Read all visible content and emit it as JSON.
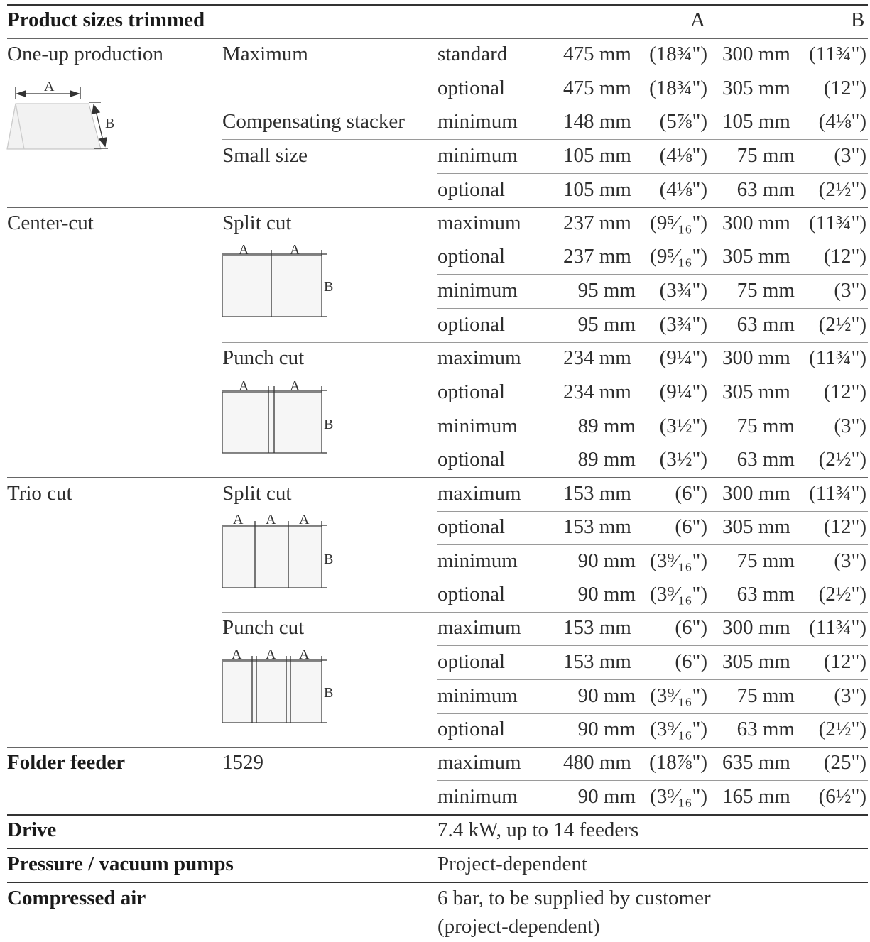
{
  "header": {
    "title": "Product sizes trimmed",
    "col_a": "A",
    "col_b": "B"
  },
  "diagram_labels": {
    "a": "A",
    "b": "B"
  },
  "sections": {
    "one_up": {
      "label": "One-up production",
      "groups": {
        "maximum": {
          "label": "Maximum",
          "rows": [
            {
              "kind": "standard",
              "a_mm": "475 mm",
              "a_in": "(18¾\")",
              "b_mm": "300 mm",
              "b_in": "(11¾\")"
            },
            {
              "kind": "optional",
              "a_mm": "475 mm",
              "a_in": "(18¾\")",
              "b_mm": "305 mm",
              "b_in": "(12\")"
            }
          ]
        },
        "stacker": {
          "label": "Compensating stacker",
          "rows": [
            {
              "kind": "minimum",
              "a_mm": "148 mm",
              "a_in": "(5⅞\")",
              "b_mm": "105 mm",
              "b_in": "(4⅛\")"
            }
          ]
        },
        "small": {
          "label": "Small size",
          "rows": [
            {
              "kind": "minimum",
              "a_mm": "105 mm",
              "a_in": "(4⅛\")",
              "b_mm": "75 mm",
              "b_in": "(3\")"
            },
            {
              "kind": "optional",
              "a_mm": "105 mm",
              "a_in": "(4⅛\")",
              "b_mm": "63 mm",
              "b_in": "(2½\")"
            }
          ]
        }
      }
    },
    "center_cut": {
      "label": "Center-cut",
      "groups": {
        "split": {
          "label": "Split cut",
          "rows": [
            {
              "kind": "maximum",
              "a_mm": "237 mm",
              "a_in": "(9⁵⁄₁₆\")",
              "b_mm": "300 mm",
              "b_in": "(11¾\")"
            },
            {
              "kind": "optional",
              "a_mm": "237 mm",
              "a_in": "(9⁵⁄₁₆\")",
              "b_mm": "305 mm",
              "b_in": "(12\")"
            },
            {
              "kind": "minimum",
              "a_mm": "95 mm",
              "a_in": "(3¾\")",
              "b_mm": "75 mm",
              "b_in": "(3\")"
            },
            {
              "kind": "optional",
              "a_mm": "95 mm",
              "a_in": "(3¾\")",
              "b_mm": "63 mm",
              "b_in": "(2½\")"
            }
          ]
        },
        "punch": {
          "label": "Punch cut",
          "rows": [
            {
              "kind": "maximum",
              "a_mm": "234 mm",
              "a_in": "(9¼\")",
              "b_mm": "300 mm",
              "b_in": "(11¾\")"
            },
            {
              "kind": "optional",
              "a_mm": "234 mm",
              "a_in": "(9¼\")",
              "b_mm": "305 mm",
              "b_in": "(12\")"
            },
            {
              "kind": "minimum",
              "a_mm": "89 mm",
              "a_in": "(3½\")",
              "b_mm": "75 mm",
              "b_in": "(3\")"
            },
            {
              "kind": "optional",
              "a_mm": "89 mm",
              "a_in": "(3½\")",
              "b_mm": "63 mm",
              "b_in": "(2½\")"
            }
          ]
        }
      }
    },
    "trio_cut": {
      "label": "Trio cut",
      "groups": {
        "split": {
          "label": "Split cut",
          "rows": [
            {
              "kind": "maximum",
              "a_mm": "153 mm",
              "a_in": "(6\")",
              "b_mm": "300 mm",
              "b_in": "(11¾\")"
            },
            {
              "kind": "optional",
              "a_mm": "153 mm",
              "a_in": "(6\")",
              "b_mm": "305 mm",
              "b_in": "(12\")"
            },
            {
              "kind": "minimum",
              "a_mm": "90 mm",
              "a_in": "(3⁹⁄₁₆\")",
              "b_mm": "75 mm",
              "b_in": "(3\")"
            },
            {
              "kind": "optional",
              "a_mm": "90 mm",
              "a_in": "(3⁹⁄₁₆\")",
              "b_mm": "63 mm",
              "b_in": "(2½\")"
            }
          ]
        },
        "punch": {
          "label": "Punch cut",
          "rows": [
            {
              "kind": "maximum",
              "a_mm": "153 mm",
              "a_in": "(6\")",
              "b_mm": "300 mm",
              "b_in": "(11¾\")"
            },
            {
              "kind": "optional",
              "a_mm": "153 mm",
              "a_in": "(6\")",
              "b_mm": "305 mm",
              "b_in": "(12\")"
            },
            {
              "kind": "minimum",
              "a_mm": "90 mm",
              "a_in": "(3⁹⁄₁₆\")",
              "b_mm": "75 mm",
              "b_in": "(3\")"
            },
            {
              "kind": "optional",
              "a_mm": "90 mm",
              "a_in": "(3⁹⁄₁₆\")",
              "b_mm": "63 mm",
              "b_in": "(2½\")"
            }
          ]
        }
      }
    },
    "folder_feeder": {
      "label": "Folder feeder",
      "model": "1529",
      "rows": [
        {
          "kind": "maximum",
          "a_mm": "480 mm",
          "a_in": "(18⅞\")",
          "b_mm": "635 mm",
          "b_in": "(25\")"
        },
        {
          "kind": "minimum",
          "a_mm": "90 mm",
          "a_in": "(3⁹⁄₁₆\")",
          "b_mm": "165 mm",
          "b_in": "(6½\")"
        }
      ]
    }
  },
  "specs": {
    "drive": {
      "label": "Drive",
      "value": "7.4 kW, up to 14 feeders"
    },
    "pumps": {
      "label": "Pressure / vacuum pumps",
      "value": "Project-dependent"
    },
    "air": {
      "label": "Compressed air",
      "value_line1": "6 bar, to be supplied by customer",
      "value_line2": "(project-dependent)"
    }
  }
}
